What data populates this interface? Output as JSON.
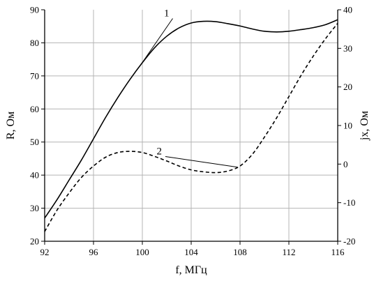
{
  "chart_data": {
    "type": "line",
    "xlabel": "f, МГц",
    "ylabel_left": "R, Ом",
    "ylabel_right": "jx, Ом",
    "xlim": [
      92,
      116
    ],
    "ylim_left": [
      20,
      90
    ],
    "ylim_right": [
      -20,
      40
    ],
    "x_ticks": [
      92,
      96,
      100,
      104,
      108,
      112,
      116
    ],
    "y_ticks_left": [
      20,
      30,
      40,
      50,
      60,
      70,
      80,
      90
    ],
    "y_ticks_right": [
      -20,
      -10,
      0,
      10,
      20,
      30,
      40
    ],
    "grid": true,
    "series": [
      {
        "name": "1",
        "axis": "left",
        "style": "solid",
        "color": "#000000",
        "x": [
          92,
          93,
          94,
          95,
          96,
          97,
          98,
          99,
          100,
          101,
          102,
          103,
          104,
          105,
          106,
          107,
          108,
          109,
          110,
          111,
          112,
          113,
          114,
          115,
          116
        ],
        "y": [
          27,
          32.5,
          38.5,
          44.5,
          51,
          57.5,
          63.5,
          69,
          74,
          78.5,
          82,
          84.5,
          86,
          86.5,
          86.4,
          85.8,
          85.1,
          84.2,
          83.5,
          83.3,
          83.5,
          84,
          84.6,
          85.5,
          87
        ]
      },
      {
        "name": "2",
        "axis": "right",
        "style": "dashed",
        "color": "#000000",
        "x": [
          92,
          93,
          94,
          95,
          96,
          97,
          98,
          99,
          100,
          101,
          102,
          103,
          104,
          105,
          106,
          107,
          108,
          109,
          110,
          111,
          112,
          113,
          114,
          115,
          116
        ],
        "y": [
          -17.5,
          -12,
          -7.5,
          -3.5,
          -0.5,
          1.8,
          3,
          3.3,
          3,
          2,
          0.8,
          -0.5,
          -1.5,
          -2,
          -2.2,
          -1.8,
          -0.5,
          2.5,
          7,
          12,
          17.5,
          23,
          28,
          32.5,
          36.5
        ]
      }
    ],
    "annotations": [
      {
        "text": "1",
        "series": "1",
        "label_at": [
          102.2,
          88
        ],
        "point_at": [
          99.8,
          73
        ]
      },
      {
        "text": "2",
        "series": "2",
        "label_at": [
          101.6,
          2.5
        ],
        "point_at": [
          107.8,
          -0.8
        ]
      }
    ]
  }
}
